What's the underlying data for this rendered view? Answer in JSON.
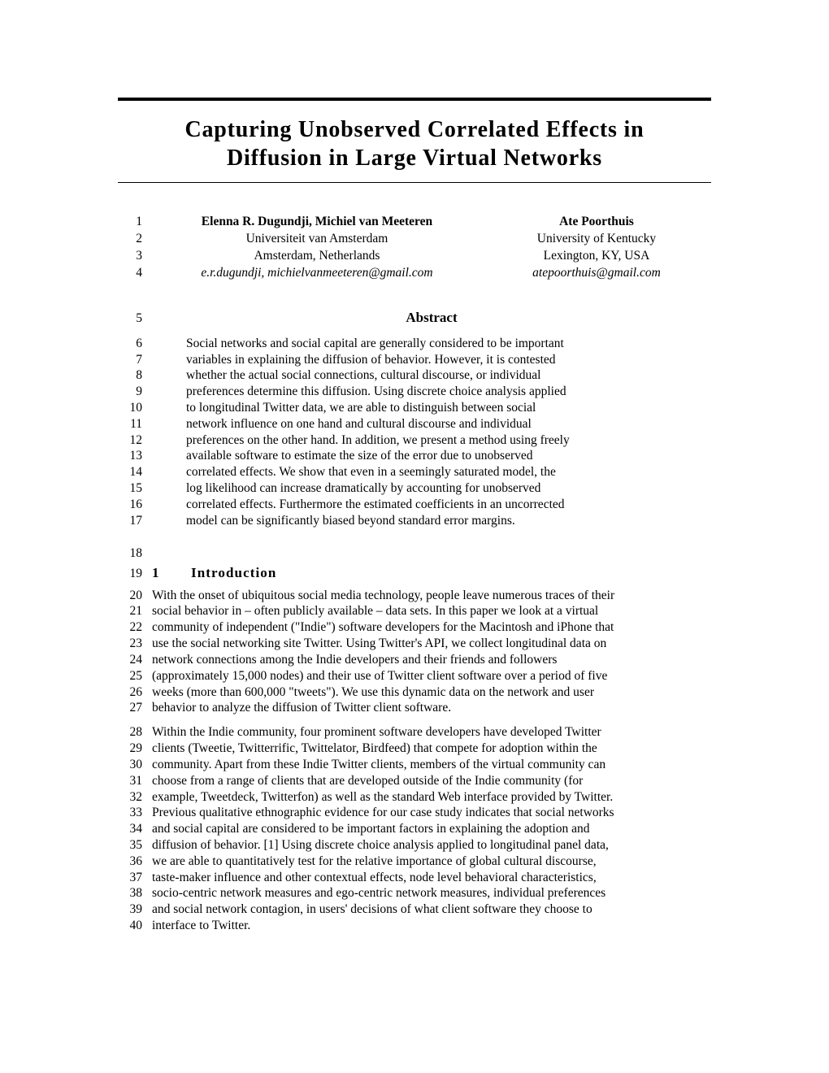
{
  "title_line1": "Capturing Unobserved Correlated Effects in",
  "title_line2": "Diffusion in Large Virtual Networks",
  "authors": {
    "left": {
      "name": "Elenna R. Dugundji, Michiel van Meeteren",
      "affil": "Universiteit van Amsterdam",
      "loc": "Amsterdam, Netherlands",
      "email": "e.r.dugundji, michielvanmeeteren@gmail.com"
    },
    "right": {
      "name": "Ate Poorthuis",
      "affil": "University of Kentucky",
      "loc": "Lexington, KY, USA",
      "email": "atepoorthuis@gmail.com"
    }
  },
  "abstract_heading": "Abstract",
  "abstract_lines": [
    "Social networks and social capital are generally considered to be important",
    "variables in explaining the diffusion of behavior. However, it is contested",
    "whether the actual social connections, cultural discourse, or individual",
    "preferences determine this diffusion. Using discrete choice analysis applied",
    "to longitudinal Twitter data, we are able to distinguish between social",
    "network influence on one hand and cultural discourse and individual",
    "preferences on the other hand. In addition, we present a method using freely",
    "available software to estimate the size of the error due to unobserved",
    "correlated effects. We show that even in a seemingly saturated model, the",
    "log likelihood can increase dramatically by accounting for unobserved",
    "correlated effects. Furthermore the estimated coefficients in an uncorrected",
    "model can be significantly biased beyond standard error margins."
  ],
  "section1": {
    "num": "1",
    "title": "Introduction"
  },
  "para1_lines": [
    "With the onset of ubiquitous social media technology, people leave numerous traces of their",
    "social behavior in – often publicly available – data sets. In this paper we look at a virtual",
    "community of independent (\"Indie\") software developers for the Macintosh and iPhone that",
    "use the social networking site Twitter. Using Twitter's API, we collect longitudinal data on",
    "network connections among the Indie developers and their friends and followers",
    "(approximately 15,000 nodes) and their use of Twitter client software over a period of five",
    "weeks (more than 600,000 \"tweets\"). We use this dynamic data on the network and user",
    "behavior to analyze the diffusion of Twitter client software."
  ],
  "para2_lines": [
    "Within the Indie community, four prominent software developers have developed Twitter",
    "clients (Tweetie, Twitterrific, Twittelator, Birdfeed) that compete for adoption within the",
    "community. Apart from these Indie Twitter clients, members of the virtual community can",
    "choose from a range of clients that are developed outside of the Indie community (for",
    "example, Tweetdeck, Twitterfon) as well as the standard Web interface provided by Twitter.",
    "Previous qualitative ethnographic evidence for our case study indicates that social networks",
    "and social capital are considered to be important factors in explaining the adoption and",
    "diffusion of behavior. [1] Using discrete choice analysis applied to longitudinal panel data,",
    "we are able to quantitatively test for the relative importance of global cultural discourse,",
    "taste-maker influence and other contextual effects, node level behavioral characteristics,",
    "socio-centric network measures and ego-centric network measures, individual preferences",
    "and social network contagion, in users' decisions of what client software they choose to",
    "interface to Twitter."
  ],
  "line_nums": {
    "authors": [
      1,
      2,
      3,
      4
    ],
    "abstract_heading": 5,
    "abstract_start": 6,
    "blank1": 18,
    "section1": 19,
    "para1_start": 20,
    "para2_start": 28
  }
}
